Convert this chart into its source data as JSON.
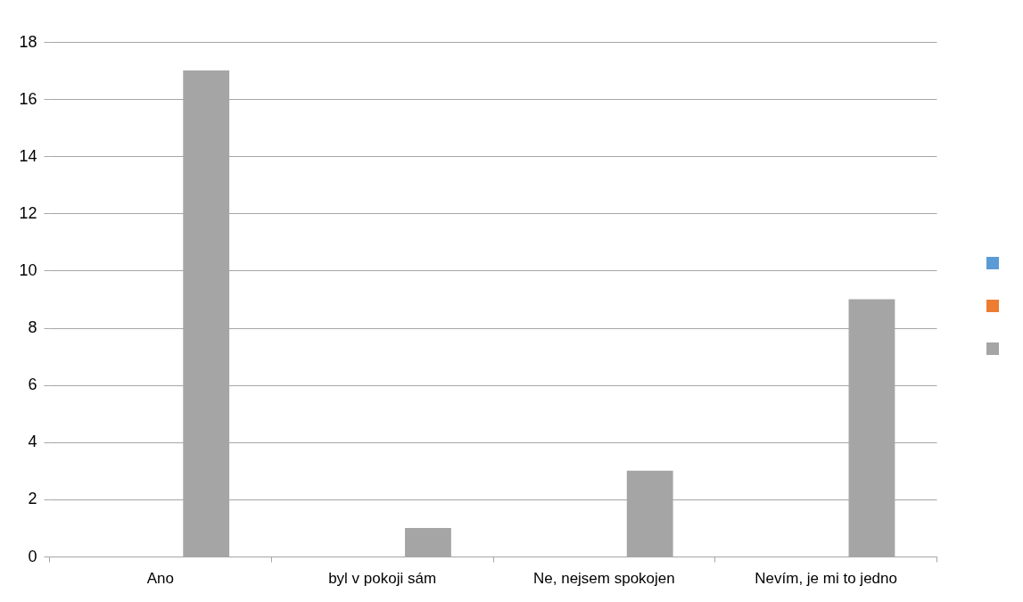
{
  "chart_data": {
    "type": "bar",
    "categories": [
      "Ano",
      "byl v pokoji sám",
      "Ne, nejsem spokojen",
      "Nevím, je mi to jedno"
    ],
    "series": [
      {
        "color": "#5b9bd5",
        "values": [
          null,
          null,
          null,
          null
        ]
      },
      {
        "color": "#ed7d31",
        "values": [
          null,
          null,
          null,
          null
        ]
      },
      {
        "color": "#a5a5a5",
        "values": [
          17,
          1,
          3,
          9
        ]
      }
    ],
    "ylim": [
      0,
      18
    ],
    "yticks": [
      0,
      2,
      4,
      6,
      8,
      10,
      12,
      14,
      16,
      18
    ],
    "grid": "y"
  }
}
